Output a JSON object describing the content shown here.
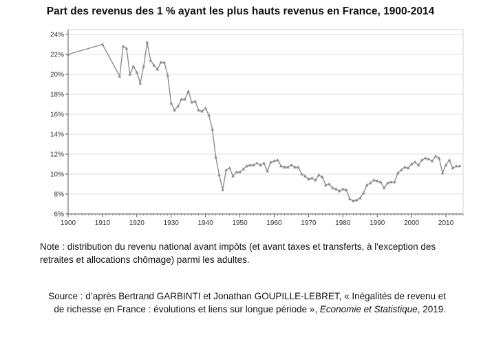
{
  "chart_data": {
    "type": "line",
    "title": "Part des revenus des 1 % ayant les plus hauts revenus en France, 1900-2014",
    "xlabel": "",
    "ylabel": "",
    "xlim": [
      1900,
      2015
    ],
    "ylim": [
      6,
      24
    ],
    "x_ticks": [
      1900,
      1910,
      1920,
      1930,
      1940,
      1950,
      1960,
      1970,
      1980,
      1990,
      2000,
      2010
    ],
    "y_ticks": [
      "6%",
      "8%",
      "10%",
      "12%",
      "14%",
      "16%",
      "18%",
      "20%",
      "22%",
      "24%"
    ],
    "y_tick_values": [
      6,
      8,
      10,
      12,
      14,
      16,
      18,
      20,
      22,
      24
    ],
    "grid": "horizontal",
    "series": [
      {
        "color": "#8c8c8c",
        "x": [
          1900,
          1910,
          1915,
          1916,
          1917,
          1918,
          1919,
          1920,
          1921,
          1922,
          1923,
          1924,
          1925,
          1926,
          1927,
          1928,
          1929,
          1930,
          1931,
          1932,
          1933,
          1934,
          1935,
          1936,
          1937,
          1938,
          1939,
          1940,
          1941,
          1942,
          1943,
          1944,
          1945,
          1946,
          1947,
          1948,
          1949,
          1950,
          1951,
          1952,
          1953,
          1954,
          1955,
          1956,
          1957,
          1958,
          1959,
          1960,
          1961,
          1962,
          1963,
          1964,
          1965,
          1966,
          1967,
          1968,
          1969,
          1970,
          1971,
          1972,
          1973,
          1974,
          1975,
          1976,
          1977,
          1978,
          1979,
          1980,
          1981,
          1982,
          1983,
          1984,
          1985,
          1986,
          1987,
          1988,
          1989,
          1990,
          1991,
          1992,
          1993,
          1994,
          1995,
          1996,
          1997,
          1998,
          1999,
          2000,
          2001,
          2002,
          2003,
          2004,
          2005,
          2006,
          2007,
          2008,
          2009,
          2010,
          2011,
          2012,
          2013,
          2014
        ],
        "y": [
          22.0,
          23.0,
          19.8,
          22.8,
          22.6,
          20.0,
          20.8,
          20.2,
          19.1,
          20.8,
          23.2,
          21.4,
          20.9,
          20.5,
          21.2,
          21.2,
          19.9,
          17.1,
          16.4,
          16.8,
          17.5,
          17.5,
          18.3,
          17.2,
          17.3,
          16.4,
          16.3,
          16.6,
          15.9,
          14.5,
          11.7,
          9.9,
          8.4,
          10.4,
          10.6,
          9.8,
          10.2,
          10.2,
          10.5,
          10.8,
          10.9,
          10.9,
          11.1,
          10.9,
          11.1,
          10.3,
          11.2,
          11.3,
          11.4,
          10.8,
          10.7,
          10.7,
          10.9,
          10.7,
          10.7,
          10.0,
          9.8,
          9.5,
          9.6,
          9.4,
          9.9,
          9.7,
          8.9,
          9.0,
          8.6,
          8.5,
          8.3,
          8.5,
          8.4,
          7.5,
          7.3,
          7.4,
          7.6,
          8.1,
          8.9,
          9.1,
          9.4,
          9.3,
          9.2,
          8.6,
          9.1,
          9.2,
          9.2,
          10.1,
          10.4,
          10.7,
          10.6,
          11.0,
          11.2,
          10.9,
          11.4,
          11.6,
          11.5,
          11.3,
          11.8,
          11.6,
          10.1,
          10.9,
          11.4,
          10.6,
          10.8,
          10.8
        ]
      }
    ]
  },
  "note": "Note : distribution du revenu national avant impôts (et avant taxes et transferts, à l'exception des retraites et allocations chômage) parmi les adultes.",
  "source": {
    "prefix": "Source : d’après Bertrand GARBINTI et Jonathan GOUPILLE-LEBRET, « Inégalités de revenu et de richesse en France : évolutions et liens sur longue période », ",
    "journal": "Economie et Statistique",
    "suffix": ", 2019."
  }
}
